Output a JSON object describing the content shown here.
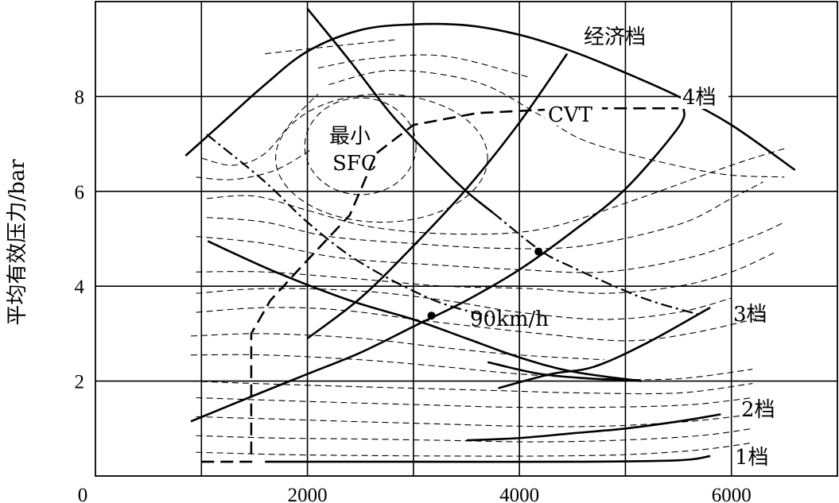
{
  "chart_data": {
    "type": "line",
    "title": "",
    "xlabel": "",
    "ylabel": "平均有效压力/bar",
    "xlim": [
      0,
      7000
    ],
    "ylim": [
      0,
      10
    ],
    "x_ticks": [
      0,
      2000,
      4000,
      6000
    ],
    "y_ticks": [
      2,
      4,
      6,
      8
    ],
    "grid": true,
    "annotations": {
      "economy_gear": "经济档",
      "gear4": "4档",
      "gear3": "3档",
      "gear2": "2档",
      "gear1": "1档",
      "cvt": "CVT",
      "min_sfc_line1": "最小",
      "min_sfc_line2": "SFC",
      "speed_90": "90km/h"
    },
    "series": [
      {
        "key": "max_torque",
        "style": "solid",
        "points": [
          [
            850,
            6.75
          ],
          [
            1200,
            7.45
          ],
          [
            1600,
            8.25
          ],
          [
            2000,
            8.95
          ],
          [
            2500,
            9.4
          ],
          [
            3000,
            9.52
          ],
          [
            3500,
            9.5
          ],
          [
            4000,
            9.3
          ],
          [
            4500,
            8.95
          ],
          [
            5000,
            8.5
          ],
          [
            5500,
            8.0
          ],
          [
            6000,
            7.4
          ],
          [
            6600,
            6.45
          ]
        ]
      },
      {
        "key": "gear4",
        "style": "solid",
        "points": [
          [
            2000,
            2.9
          ],
          [
            2500,
            3.75
          ],
          [
            3000,
            4.85
          ],
          [
            3500,
            6.05
          ],
          [
            4000,
            7.45
          ],
          [
            4450,
            8.9
          ]
        ]
      },
      {
        "key": "gear3",
        "style": "solid",
        "points": [
          [
            900,
            1.15
          ],
          [
            1500,
            1.7
          ],
          [
            2000,
            2.15
          ],
          [
            2500,
            2.6
          ],
          [
            3000,
            3.15
          ],
          [
            3500,
            3.7
          ],
          [
            4000,
            4.35
          ],
          [
            4500,
            5.15
          ],
          [
            5000,
            6.05
          ],
          [
            5500,
            7.35
          ],
          [
            5550,
            7.75
          ]
        ]
      },
      {
        "key": "gear2_upper",
        "style": "solid",
        "points": [
          [
            3800,
            1.85
          ],
          [
            4300,
            2.15
          ],
          [
            4700,
            2.3
          ],
          [
            5200,
            2.8
          ],
          [
            5800,
            3.55
          ]
        ]
      },
      {
        "key": "gear2_lower",
        "style": "solid",
        "points": [
          [
            3500,
            0.75
          ],
          [
            4000,
            0.8
          ],
          [
            4500,
            0.9
          ],
          [
            5000,
            1.0
          ],
          [
            5500,
            1.15
          ],
          [
            5900,
            1.3
          ]
        ]
      },
      {
        "key": "gear1",
        "style": "solid",
        "points": [
          [
            1600,
            0.3
          ],
          [
            3000,
            0.3
          ],
          [
            4500,
            0.3
          ],
          [
            5500,
            0.33
          ],
          [
            5800,
            0.42
          ]
        ]
      },
      {
        "key": "speed_90_solid_upper",
        "style": "solid",
        "points": [
          [
            2000,
            9.85
          ],
          [
            2400,
            8.75
          ],
          [
            2800,
            7.6
          ],
          [
            3200,
            6.65
          ],
          [
            3500,
            6.0
          ],
          [
            3750,
            5.55
          ]
        ]
      },
      {
        "key": "speed_90_solid_lower",
        "style": "solid",
        "points": [
          [
            1060,
            4.95
          ],
          [
            1700,
            4.3
          ],
          [
            2400,
            3.7
          ],
          [
            3000,
            3.3
          ],
          [
            3500,
            2.9
          ],
          [
            4000,
            2.5
          ],
          [
            4500,
            2.2
          ],
          [
            5150,
            2.0
          ]
        ]
      },
      {
        "key": "speed_90_lower_branch",
        "style": "solid",
        "points": [
          [
            3700,
            2.4
          ],
          [
            4200,
            2.15
          ],
          [
            4700,
            2.05
          ],
          [
            5050,
            2.03
          ]
        ]
      },
      {
        "key": "speed_90_dashdot",
        "style": "dashdot",
        "points": [
          [
            1050,
            7.2
          ],
          [
            1600,
            6.2
          ],
          [
            2000,
            5.35
          ],
          [
            2500,
            4.5
          ],
          [
            3200,
            3.7
          ],
          [
            3750,
            3.35
          ]
        ]
      },
      {
        "key": "speed_90_dashdot_upper",
        "style": "dashdot",
        "points": [
          [
            3750,
            5.55
          ],
          [
            4200,
            4.75
          ],
          [
            4500,
            4.4
          ],
          [
            5000,
            3.9
          ],
          [
            5300,
            3.65
          ],
          [
            5700,
            3.4
          ]
        ]
      },
      {
        "key": "cvt",
        "style": "dashed_thick",
        "points": [
          [
            1000,
            0.3
          ],
          [
            1470,
            0.3
          ],
          [
            1470,
            3.0
          ],
          [
            1650,
            3.7
          ],
          [
            2000,
            4.55
          ],
          [
            2400,
            5.5
          ],
          [
            2650,
            6.8
          ],
          [
            3000,
            7.4
          ],
          [
            3600,
            7.65
          ],
          [
            4500,
            7.75
          ],
          [
            5500,
            7.75
          ]
        ]
      }
    ],
    "markers": [
      [
        3170,
        3.38
      ],
      [
        4180,
        4.73
      ]
    ],
    "contours": [
      {
        "shape": "ellipse",
        "center": [
          2500,
          6.95
        ],
        "rx": 525,
        "ry": 1.02
      },
      {
        "shape": "ellipse",
        "center": [
          2700,
          6.7
        ],
        "rx": 1000,
        "ry": 1.35
      },
      {
        "shape": "line",
        "points": [
          [
            2200,
            8.25
          ],
          [
            2800,
            8.55
          ],
          [
            3600,
            8.3
          ],
          [
            4200,
            7.6
          ],
          [
            4700,
            7.0
          ],
          [
            5800,
            6.4
          ],
          [
            6500,
            6.3
          ]
        ]
      },
      {
        "shape": "line",
        "points": [
          [
            1600,
            8.9
          ],
          [
            2200,
            9.05
          ],
          [
            2850,
            9.2
          ]
        ]
      },
      {
        "shape": "line",
        "points": [
          [
            2100,
            8.6
          ],
          [
            2600,
            8.8
          ],
          [
            3300,
            8.85
          ],
          [
            4100,
            8.4
          ]
        ]
      },
      {
        "shape": "line",
        "points": [
          [
            1000,
            6.7
          ],
          [
            1300,
            6.55
          ],
          [
            1600,
            6.8
          ],
          [
            1900,
            7.6
          ],
          [
            2100,
            8.05
          ]
        ]
      },
      {
        "shape": "line",
        "points": [
          [
            950,
            6.3
          ],
          [
            1300,
            6.25
          ],
          [
            1700,
            6.45
          ],
          [
            2050,
            6.9
          ]
        ]
      },
      {
        "shape": "line",
        "points": [
          [
            1050,
            5.85
          ],
          [
            1500,
            5.9
          ],
          [
            2000,
            5.6
          ],
          [
            2600,
            5.25
          ],
          [
            3400,
            5.1
          ],
          [
            4200,
            5.2
          ],
          [
            5000,
            5.75
          ],
          [
            6000,
            6.55
          ],
          [
            6500,
            6.9
          ]
        ]
      },
      {
        "shape": "line",
        "points": [
          [
            1050,
            5.45
          ],
          [
            1600,
            5.35
          ],
          [
            2200,
            5.05
          ],
          [
            3000,
            4.9
          ],
          [
            3800,
            4.8
          ],
          [
            4600,
            4.85
          ],
          [
            5500,
            5.3
          ],
          [
            6000,
            5.85
          ],
          [
            6300,
            6.2
          ]
        ]
      },
      {
        "shape": "line",
        "points": [
          [
            950,
            5.05
          ],
          [
            1600,
            4.9
          ],
          [
            2300,
            4.6
          ],
          [
            3200,
            4.45
          ],
          [
            4000,
            4.35
          ],
          [
            4800,
            4.3
          ],
          [
            5600,
            4.6
          ],
          [
            6200,
            5.05
          ],
          [
            6500,
            5.35
          ]
        ]
      },
      {
        "shape": "line",
        "points": [
          [
            950,
            4.3
          ],
          [
            1600,
            4.3
          ],
          [
            2500,
            4.15
          ],
          [
            3300,
            4.0
          ],
          [
            4100,
            3.95
          ],
          [
            4800,
            3.85
          ],
          [
            5500,
            4.0
          ],
          [
            6000,
            4.3
          ],
          [
            6400,
            4.7
          ]
        ]
      },
      {
        "shape": "line",
        "points": [
          [
            950,
            3.85
          ],
          [
            1600,
            3.95
          ],
          [
            2500,
            3.9
          ],
          [
            3300,
            3.7
          ],
          [
            4000,
            3.45
          ],
          [
            4800,
            3.3
          ],
          [
            5500,
            3.45
          ],
          [
            6000,
            3.75
          ]
        ]
      },
      {
        "shape": "line",
        "points": [
          [
            950,
            3.45
          ],
          [
            1600,
            3.55
          ],
          [
            2300,
            3.5
          ],
          [
            3200,
            3.25
          ],
          [
            4200,
            3.0
          ],
          [
            5000,
            2.85
          ],
          [
            5600,
            3.0
          ],
          [
            6300,
            3.35
          ]
        ]
      },
      {
        "shape": "line",
        "points": [
          [
            900,
            2.95
          ],
          [
            1600,
            3.0
          ],
          [
            2500,
            2.9
          ],
          [
            3300,
            2.7
          ],
          [
            4000,
            2.55
          ],
          [
            4800,
            2.45
          ]
        ]
      },
      {
        "shape": "line",
        "points": [
          [
            900,
            2.55
          ],
          [
            1600,
            2.55
          ],
          [
            2500,
            2.45
          ],
          [
            3300,
            2.3
          ],
          [
            4000,
            2.15
          ],
          [
            4800,
            2.05
          ],
          [
            5500,
            2.05
          ],
          [
            6200,
            2.25
          ]
        ]
      },
      {
        "shape": "line",
        "points": [
          [
            900,
            2.0
          ],
          [
            1500,
            1.95
          ],
          [
            2200,
            1.9
          ],
          [
            3000,
            1.85
          ],
          [
            3800,
            1.8
          ],
          [
            4600,
            1.75
          ],
          [
            5500,
            1.75
          ],
          [
            6200,
            1.95
          ]
        ]
      },
      {
        "shape": "line",
        "points": [
          [
            950,
            1.65
          ],
          [
            1600,
            1.6
          ],
          [
            2300,
            1.55
          ],
          [
            3100,
            1.5
          ],
          [
            3900,
            1.45
          ],
          [
            4800,
            1.45
          ],
          [
            5600,
            1.5
          ],
          [
            6200,
            1.65
          ]
        ]
      },
      {
        "shape": "line",
        "points": [
          [
            950,
            1.25
          ],
          [
            1700,
            1.2
          ],
          [
            2400,
            1.15
          ],
          [
            3200,
            1.1
          ],
          [
            4000,
            1.05
          ],
          [
            4800,
            1.05
          ],
          [
            5600,
            1.15
          ],
          [
            6200,
            1.3
          ]
        ]
      },
      {
        "shape": "line",
        "points": [
          [
            950,
            0.85
          ],
          [
            1700,
            0.8
          ],
          [
            2500,
            0.78
          ],
          [
            3300,
            0.75
          ],
          [
            4100,
            0.72
          ],
          [
            4900,
            0.75
          ],
          [
            5700,
            0.85
          ],
          [
            6200,
            1.0
          ]
        ]
      },
      {
        "shape": "line",
        "points": [
          [
            950,
            0.5
          ],
          [
            1800,
            0.45
          ],
          [
            2600,
            0.43
          ],
          [
            3400,
            0.42
          ],
          [
            4200,
            0.42
          ],
          [
            5000,
            0.45
          ],
          [
            5700,
            0.55
          ],
          [
            6200,
            0.7
          ]
        ]
      }
    ]
  }
}
